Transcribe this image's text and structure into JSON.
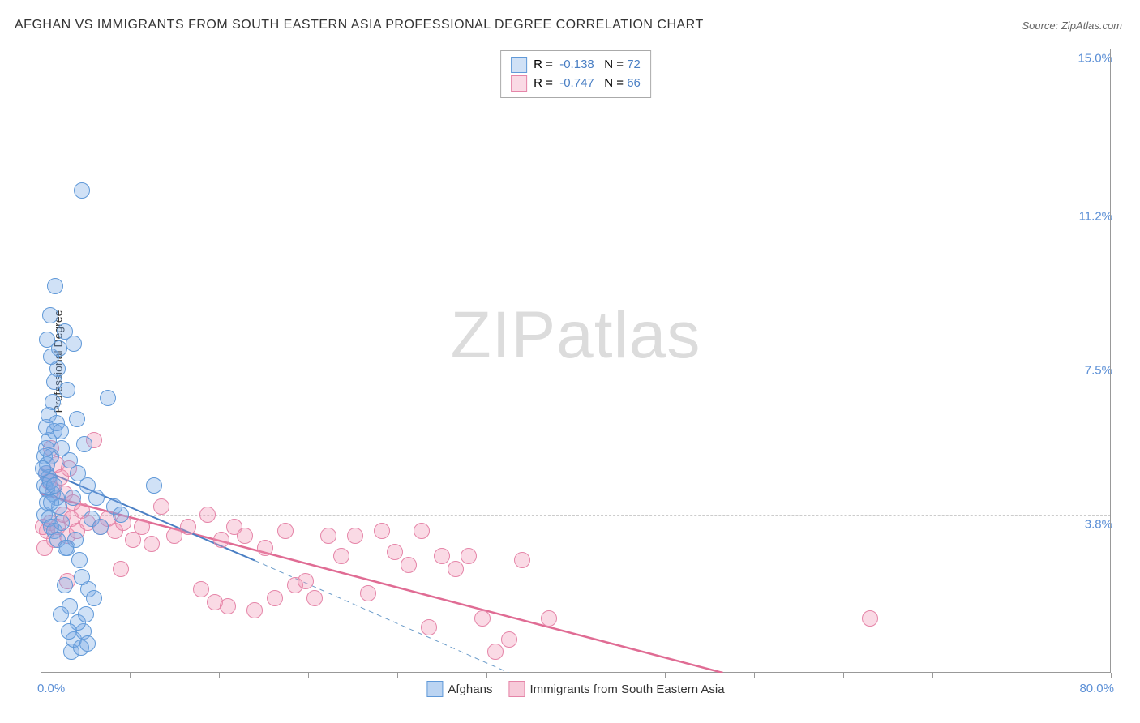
{
  "title": "AFGHAN VS IMMIGRANTS FROM SOUTH EASTERN ASIA PROFESSIONAL DEGREE CORRELATION CHART",
  "source": "Source: ZipAtlas.com",
  "ylabel": "Professional Degree",
  "watermark_zip": "ZIP",
  "watermark_atlas": "atlas",
  "chart": {
    "type": "scatter",
    "xlim": [
      0,
      80
    ],
    "ylim": [
      0,
      15
    ],
    "x_min_label": "0.0%",
    "x_max_label": "80.0%",
    "y_grid": [
      {
        "value": 3.8,
        "label": "3.8%"
      },
      {
        "value": 7.5,
        "label": "7.5%"
      },
      {
        "value": 11.2,
        "label": "11.2%"
      },
      {
        "value": 15.0,
        "label": "15.0%"
      }
    ],
    "x_ticks": [
      0,
      6.67,
      13.33,
      20,
      26.67,
      33.33,
      40,
      46.67,
      53.33,
      60,
      66.67,
      73.33,
      80
    ],
    "background_color": "#ffffff",
    "grid_color": "#cccccc",
    "axis_color": "#999999",
    "series": [
      {
        "name": "Afghans",
        "fill": "rgba(120,170,230,0.35)",
        "stroke": "#6099d8",
        "marker_radius": 9,
        "R": "-0.138",
        "N": "72",
        "trend": {
          "x1": 0,
          "y1": 4.9,
          "x2": 16,
          "y2": 2.7,
          "color": "#4a7fc4",
          "width": 2,
          "dash": "none"
        },
        "trend_ext": {
          "x1": 16,
          "y1": 2.7,
          "x2": 35,
          "y2": 0.0,
          "color": "#6a9bc9",
          "width": 1,
          "dash": "6,5"
        },
        "points": [
          [
            0.3,
            5.2
          ],
          [
            0.4,
            4.8
          ],
          [
            0.5,
            5.0
          ],
          [
            0.6,
            4.7
          ],
          [
            0.8,
            5.2
          ],
          [
            0.3,
            4.5
          ],
          [
            0.5,
            4.4
          ],
          [
            0.7,
            4.6
          ],
          [
            0.4,
            5.4
          ],
          [
            0.6,
            5.6
          ],
          [
            0.9,
            4.3
          ],
          [
            1.0,
            5.8
          ],
          [
            1.2,
            4.2
          ],
          [
            1.4,
            4.0
          ],
          [
            0.2,
            4.9
          ],
          [
            0.3,
            3.8
          ],
          [
            0.5,
            4.1
          ],
          [
            0.6,
            3.7
          ],
          [
            0.8,
            3.5
          ],
          [
            1.0,
            3.4
          ],
          [
            1.3,
            3.2
          ],
          [
            1.6,
            3.6
          ],
          [
            2.0,
            3.0
          ],
          [
            0.4,
            5.9
          ],
          [
            0.6,
            6.2
          ],
          [
            0.9,
            6.5
          ],
          [
            1.2,
            6.0
          ],
          [
            1.5,
            5.8
          ],
          [
            1.0,
            7.0
          ],
          [
            1.3,
            7.3
          ],
          [
            0.8,
            7.6
          ],
          [
            1.6,
            5.4
          ],
          [
            2.2,
            5.1
          ],
          [
            2.8,
            4.8
          ],
          [
            3.5,
            4.5
          ],
          [
            4.2,
            4.2
          ],
          [
            1.8,
            8.2
          ],
          [
            2.5,
            7.9
          ],
          [
            0.7,
            8.6
          ],
          [
            1.4,
            7.8
          ],
          [
            2.0,
            6.8
          ],
          [
            2.7,
            6.1
          ],
          [
            3.3,
            5.5
          ],
          [
            0.5,
            8.0
          ],
          [
            1.1,
            9.3
          ],
          [
            3.1,
            11.6
          ],
          [
            0.8,
            4.1
          ],
          [
            1.0,
            4.5
          ],
          [
            5.5,
            4.0
          ],
          [
            6.0,
            3.8
          ],
          [
            5.0,
            6.6
          ],
          [
            8.5,
            4.5
          ],
          [
            2.3,
            0.5
          ],
          [
            2.5,
            0.8
          ],
          [
            3.0,
            0.6
          ],
          [
            3.2,
            1.0
          ],
          [
            3.5,
            0.7
          ],
          [
            2.8,
            1.2
          ],
          [
            3.4,
            1.4
          ],
          [
            2.1,
            1.0
          ],
          [
            3.8,
            3.7
          ],
          [
            4.5,
            3.5
          ],
          [
            2.4,
            4.2
          ],
          [
            2.9,
            2.7
          ],
          [
            1.8,
            2.1
          ],
          [
            3.6,
            2.0
          ],
          [
            2.2,
            1.6
          ],
          [
            3.1,
            2.3
          ],
          [
            1.5,
            1.4
          ],
          [
            4.0,
            1.8
          ],
          [
            2.6,
            3.2
          ],
          [
            1.9,
            3.0
          ]
        ]
      },
      {
        "name": "Immigrants from South Eastern Asia",
        "fill": "rgba(240,150,180,0.35)",
        "stroke": "#e585a8",
        "marker_radius": 9,
        "R": "-0.747",
        "N": "66",
        "trend": {
          "x1": 0,
          "y1": 4.3,
          "x2": 51,
          "y2": 0.0,
          "color": "#e06c94",
          "width": 2.5,
          "dash": "none"
        },
        "points": [
          [
            0.4,
            4.8
          ],
          [
            0.6,
            4.6
          ],
          [
            0.9,
            4.4
          ],
          [
            1.2,
            5.0
          ],
          [
            1.5,
            4.7
          ],
          [
            1.8,
            4.3
          ],
          [
            2.1,
            4.9
          ],
          [
            2.4,
            4.1
          ],
          [
            0.5,
            3.4
          ],
          [
            1.0,
            3.2
          ],
          [
            0.7,
            3.6
          ],
          [
            1.3,
            3.5
          ],
          [
            1.7,
            3.8
          ],
          [
            2.0,
            3.3
          ],
          [
            2.3,
            3.7
          ],
          [
            2.7,
            3.4
          ],
          [
            3.1,
            3.9
          ],
          [
            3.5,
            3.6
          ],
          [
            4.0,
            5.6
          ],
          [
            4.5,
            3.5
          ],
          [
            5.0,
            3.7
          ],
          [
            5.6,
            3.4
          ],
          [
            6.2,
            3.6
          ],
          [
            6.9,
            3.2
          ],
          [
            7.6,
            3.5
          ],
          [
            8.3,
            3.1
          ],
          [
            9.0,
            4.0
          ],
          [
            10.0,
            3.3
          ],
          [
            11.0,
            3.5
          ],
          [
            12.0,
            2.0
          ],
          [
            12.5,
            3.8
          ],
          [
            13.0,
            1.7
          ],
          [
            13.5,
            3.2
          ],
          [
            14.0,
            1.6
          ],
          [
            14.5,
            3.5
          ],
          [
            15.3,
            3.3
          ],
          [
            16.0,
            1.5
          ],
          [
            16.8,
            3.0
          ],
          [
            17.5,
            1.8
          ],
          [
            18.3,
            3.4
          ],
          [
            19.0,
            2.1
          ],
          [
            19.8,
            2.2
          ],
          [
            20.5,
            1.8
          ],
          [
            21.5,
            3.3
          ],
          [
            22.5,
            2.8
          ],
          [
            23.5,
            3.3
          ],
          [
            24.5,
            1.9
          ],
          [
            25.5,
            3.4
          ],
          [
            26.5,
            2.9
          ],
          [
            27.5,
            2.6
          ],
          [
            28.5,
            3.4
          ],
          [
            29.0,
            1.1
          ],
          [
            30.0,
            2.8
          ],
          [
            31.0,
            2.5
          ],
          [
            32.0,
            2.8
          ],
          [
            33.0,
            1.3
          ],
          [
            34.0,
            0.5
          ],
          [
            35.0,
            0.8
          ],
          [
            36.0,
            2.7
          ],
          [
            38.0,
            1.3
          ],
          [
            0.2,
            3.5
          ],
          [
            0.3,
            3.0
          ],
          [
            0.8,
            5.4
          ],
          [
            2.0,
            2.2
          ],
          [
            6.0,
            2.5
          ],
          [
            62.0,
            1.3
          ]
        ]
      }
    ]
  },
  "legend_bottom": [
    {
      "swatch_fill": "rgba(120,170,230,0.5)",
      "swatch_stroke": "#6099d8",
      "label": "Afghans"
    },
    {
      "swatch_fill": "rgba(240,150,180,0.5)",
      "swatch_stroke": "#e585a8",
      "label": "Immigrants from South Eastern Asia"
    }
  ],
  "legend_top": {
    "r_label": "R",
    "n_label": "N",
    "value_color": "#4a7fc4"
  }
}
